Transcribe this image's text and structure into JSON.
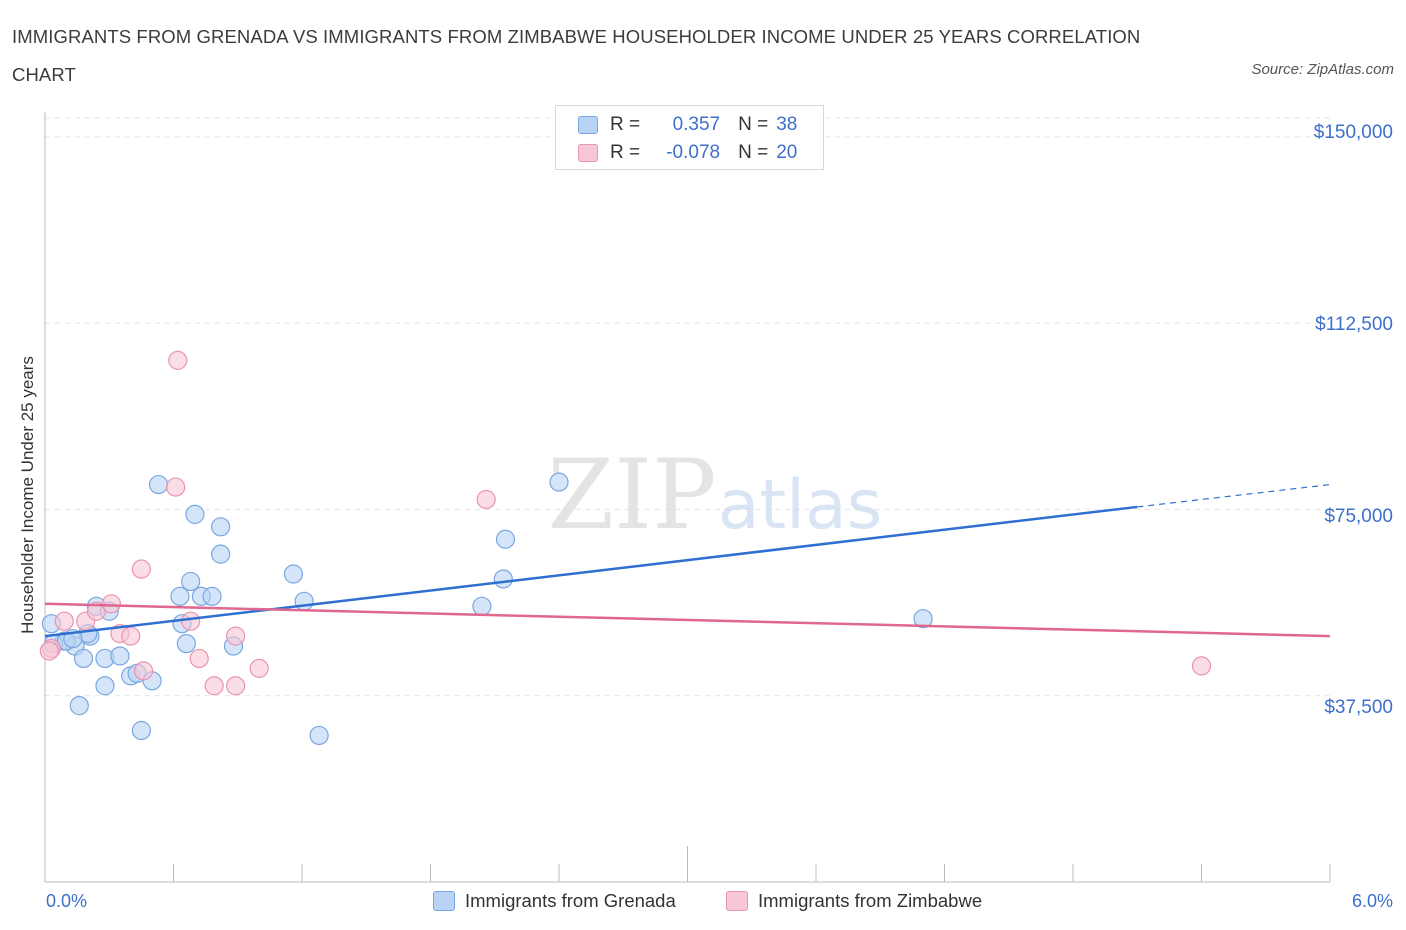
{
  "title": "IMMIGRANTS FROM GRENADA VS IMMIGRANTS FROM ZIMBABWE HOUSEHOLDER INCOME UNDER 25 YEARS CORRELATION CHART",
  "source": "Source: ZipAtlas.com",
  "watermark": {
    "zip": "ZIP",
    "atlas": "atlas"
  },
  "legend": {
    "r_label": "R =",
    "n_label": "N =",
    "grenada": {
      "r": "0.357",
      "n": "38"
    },
    "zimbabwe": {
      "r": "-0.078",
      "n": "20"
    }
  },
  "colors": {
    "grenada_fill": "#b9d3f5",
    "grenada_stroke": "#7aa6e0",
    "grenada_line": "#2e6fd1",
    "zimbabwe_fill": "#f8c7d6",
    "zimbabwe_stroke": "#e994b0",
    "zimbabwe_line": "#e0678f",
    "axis_text": "#3d6fcb",
    "grid": "#e3e3e3"
  },
  "chart_data": {
    "type": "scatter",
    "title": "IMMIGRANTS FROM GRENADA VS IMMIGRANTS FROM ZIMBABWE HOUSEHOLDER INCOME UNDER 25 YEARS CORRELATION CHART",
    "xlabel": "",
    "ylabel": "Householder Income Under 25 years",
    "xlim": [
      0,
      6.0
    ],
    "ylim": [
      0,
      155000
    ],
    "x_tick_labels": [
      "0.0%",
      "6.0%"
    ],
    "y_ticks": [
      37500,
      75000,
      112500,
      150000
    ],
    "y_tick_labels": [
      "$37,500",
      "$75,000",
      "$112,500",
      "$150,000"
    ],
    "grid": true,
    "series": [
      {
        "name": "Immigrants from Grenada",
        "points": [
          [
            0.03,
            52000
          ],
          [
            0.09,
            48500
          ],
          [
            0.14,
            47500
          ],
          [
            0.21,
            49500
          ],
          [
            0.24,
            55500
          ],
          [
            0.3,
            54500
          ],
          [
            0.18,
            45000
          ],
          [
            0.28,
            45000
          ],
          [
            0.35,
            45500
          ],
          [
            0.4,
            41500
          ],
          [
            0.43,
            42000
          ],
          [
            0.5,
            40500
          ],
          [
            0.28,
            39500
          ],
          [
            0.16,
            35500
          ],
          [
            0.45,
            30500
          ],
          [
            0.53,
            80000
          ],
          [
            0.63,
            57500
          ],
          [
            0.68,
            60500
          ],
          [
            0.73,
            57500
          ],
          [
            0.78,
            57500
          ],
          [
            0.64,
            52000
          ],
          [
            0.66,
            48000
          ],
          [
            0.7,
            74000
          ],
          [
            0.82,
            71500
          ],
          [
            0.82,
            66000
          ],
          [
            0.88,
            47500
          ],
          [
            1.16,
            62000
          ],
          [
            1.21,
            56500
          ],
          [
            1.28,
            29500
          ],
          [
            2.04,
            55500
          ],
          [
            2.14,
            61000
          ],
          [
            2.15,
            69000
          ],
          [
            2.4,
            80500
          ],
          [
            4.1,
            53000
          ],
          [
            0.04,
            48000
          ],
          [
            0.1,
            48500
          ],
          [
            0.2,
            50000
          ],
          [
            0.13,
            49000
          ]
        ],
        "trendline": {
          "x": [
            0.0,
            5.1
          ],
          "y": [
            49500,
            75500
          ],
          "dashed_extension_to": [
            6.0,
            80000
          ]
        }
      },
      {
        "name": "Immigrants from Zimbabwe",
        "points": [
          [
            0.03,
            47000
          ],
          [
            0.09,
            52500
          ],
          [
            0.19,
            52500
          ],
          [
            0.24,
            54500
          ],
          [
            0.31,
            56000
          ],
          [
            0.35,
            50000
          ],
          [
            0.4,
            49500
          ],
          [
            0.46,
            42500
          ],
          [
            0.45,
            63000
          ],
          [
            0.61,
            79500
          ],
          [
            0.62,
            105000
          ],
          [
            0.68,
            52500
          ],
          [
            0.72,
            45000
          ],
          [
            0.79,
            39500
          ],
          [
            0.89,
            39500
          ],
          [
            0.89,
            49500
          ],
          [
            1.0,
            43000
          ],
          [
            2.06,
            77000
          ],
          [
            5.4,
            43500
          ],
          [
            0.02,
            46500
          ]
        ],
        "trendline": {
          "x": [
            0.0,
            6.0
          ],
          "y": [
            56000,
            49500
          ]
        }
      }
    ]
  },
  "bottom_legend": {
    "grenada": "Immigrants from Grenada",
    "zimbabwe": "Immigrants from Zimbabwe"
  }
}
